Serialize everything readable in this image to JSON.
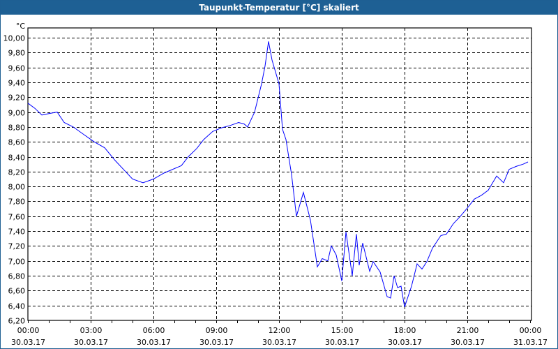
{
  "window": {
    "title": "Taupunkt-Temperatur [°C] skaliert"
  },
  "chart_data": {
    "type": "line",
    "title": "Taupunkt-Temperatur [°C] skaliert",
    "ylabel": "°C",
    "ylim": [
      6.2,
      10.0
    ],
    "yticks": [
      "6,20",
      "6,40",
      "6,60",
      "6,80",
      "7,00",
      "7,20",
      "7,40",
      "7,60",
      "7,80",
      "8,00",
      "8,20",
      "8,40",
      "8,60",
      "8,80",
      "9,00",
      "9,20",
      "9,40",
      "9,60",
      "9,80",
      "10,00"
    ],
    "xlim": [
      "30.03.17 00:00",
      "31.03.17 00:00"
    ],
    "xticks": [
      {
        "time": "00:00",
        "date": "30.03.17"
      },
      {
        "time": "03:00",
        "date": "30.03.17"
      },
      {
        "time": "06:00",
        "date": "30.03.17"
      },
      {
        "time": "09:00",
        "date": "30.03.17"
      },
      {
        "time": "12:00",
        "date": "30.03.17"
      },
      {
        "time": "15:00",
        "date": "30.03.17"
      },
      {
        "time": "18:00",
        "date": "30.03.17"
      },
      {
        "time": "21:00",
        "date": "30.03.17"
      },
      {
        "time": "00:00",
        "date": "31.03.17"
      }
    ],
    "grid": true,
    "line_color": "#0000ff",
    "series": [
      {
        "x": [
          "00:00",
          "00:20",
          "00:40",
          "01:00",
          "01:24",
          "01:44",
          "02:10",
          "02:40",
          "03:10",
          "03:40",
          "04:10",
          "04:40",
          "05:00",
          "05:30",
          "06:00",
          "06:30",
          "07:20",
          "07:40",
          "08:04",
          "08:24",
          "08:50",
          "09:16",
          "09:40",
          "10:04",
          "10:20",
          "10:30",
          "10:50",
          "11:10",
          "11:20",
          "11:30",
          "11:40",
          "12:00",
          "12:10",
          "12:20",
          "12:36",
          "12:50",
          "13:10",
          "13:30",
          "13:50",
          "14:04",
          "14:20",
          "14:30",
          "14:44",
          "15:00",
          "15:12",
          "15:30",
          "15:42",
          "15:50",
          "16:00",
          "16:20",
          "16:30",
          "16:50",
          "17:10",
          "17:20",
          "17:30",
          "17:40",
          "17:50",
          "18:00",
          "18:20",
          "18:36",
          "18:50",
          "19:04",
          "19:20",
          "19:44",
          "20:00",
          "20:20",
          "20:40",
          "21:00",
          "21:20",
          "21:40",
          "22:00",
          "22:24",
          "22:44",
          "23:00",
          "23:20",
          "23:40",
          "23:54"
        ],
        "y": [
          9.12,
          9.05,
          8.96,
          8.98,
          9.0,
          8.86,
          8.8,
          8.7,
          8.6,
          8.52,
          8.35,
          8.2,
          8.1,
          8.05,
          8.1,
          8.18,
          8.28,
          8.4,
          8.51,
          8.63,
          8.74,
          8.79,
          8.82,
          8.86,
          8.84,
          8.8,
          9.0,
          9.38,
          9.62,
          9.95,
          9.7,
          9.38,
          8.77,
          8.63,
          8.16,
          7.6,
          7.92,
          7.55,
          6.92,
          7.03,
          7.0,
          7.2,
          7.08,
          6.73,
          7.39,
          6.8,
          7.36,
          6.94,
          7.24,
          6.86,
          6.99,
          6.85,
          6.52,
          6.5,
          6.8,
          6.64,
          6.66,
          6.38,
          6.66,
          6.96,
          6.89,
          6.99,
          7.17,
          7.34,
          7.36,
          7.5,
          7.6,
          7.71,
          7.83,
          7.88,
          7.95,
          8.14,
          8.05,
          8.23,
          8.27,
          8.3,
          8.33
        ]
      }
    ]
  }
}
